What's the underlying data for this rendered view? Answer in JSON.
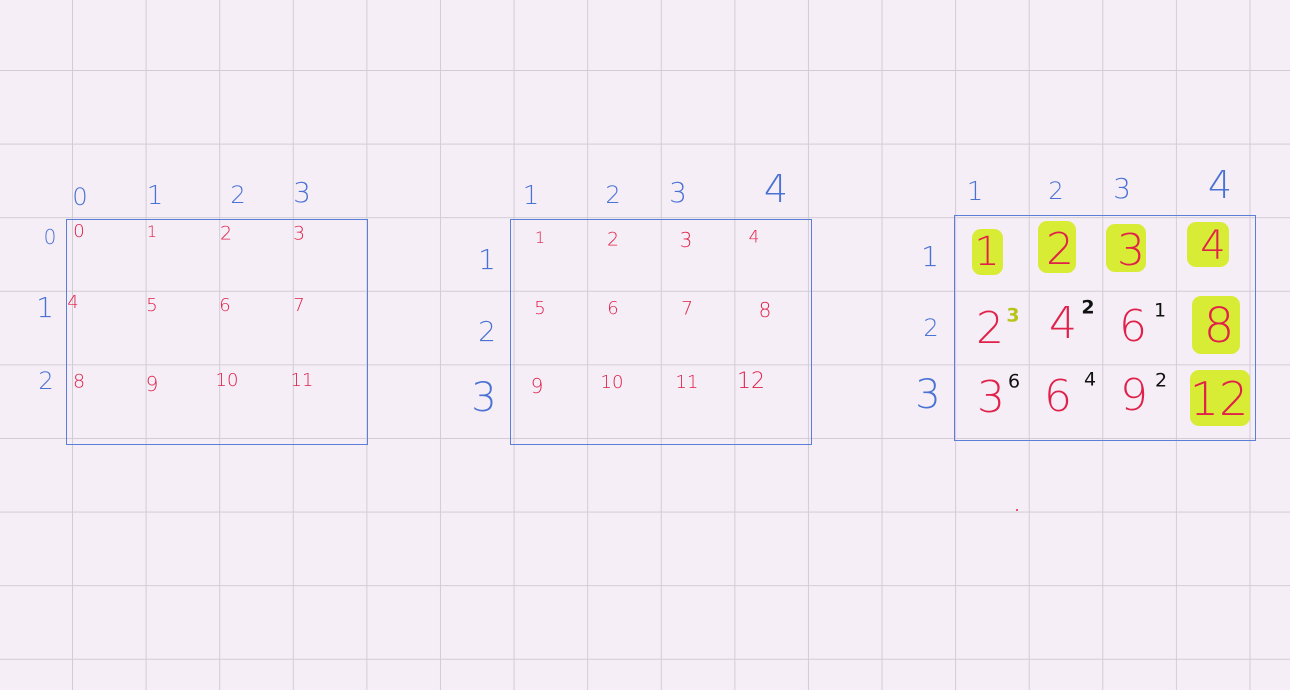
{
  "colors": {
    "background": "#f5eef6",
    "grid": "#d2ccd6",
    "ink_blue": "#4a72d4",
    "ink_red": "#e0214a",
    "highlight": "#d6ea2a",
    "ink_black": "#111111"
  },
  "grid1": {
    "col_headers": [
      "0",
      "1",
      "2",
      "3"
    ],
    "row_headers": [
      "0",
      "1",
      "2"
    ],
    "cells": [
      [
        "0",
        "1",
        "2",
        "3"
      ],
      [
        "4",
        "5",
        "6",
        "7"
      ],
      [
        "8",
        "9",
        "10",
        "11"
      ]
    ]
  },
  "grid2": {
    "col_headers": [
      "1",
      "2",
      "3",
      "4"
    ],
    "row_headers": [
      "1",
      "2",
      "3"
    ],
    "cells": [
      [
        "1",
        "2",
        "3",
        "4"
      ],
      [
        "5",
        "6",
        "7",
        "8"
      ],
      [
        "9",
        "10",
        "11",
        "12"
      ]
    ]
  },
  "grid3": {
    "col_headers": [
      "1",
      "2",
      "3",
      "4"
    ],
    "row_headers": [
      "1",
      "2",
      "3"
    ],
    "cells": [
      [
        "1",
        "2",
        "3",
        "4"
      ],
      [
        "2",
        "4",
        "6",
        "8"
      ],
      [
        "3",
        "6",
        "9",
        "12"
      ]
    ],
    "superscripts": [
      [
        "",
        "",
        "",
        ""
      ],
      [
        "3",
        "2",
        "1",
        ""
      ],
      [
        "6",
        "4",
        "2",
        ""
      ]
    ],
    "highlighted_cells": [
      "1",
      "2",
      "3",
      "4",
      "8",
      "12"
    ]
  }
}
